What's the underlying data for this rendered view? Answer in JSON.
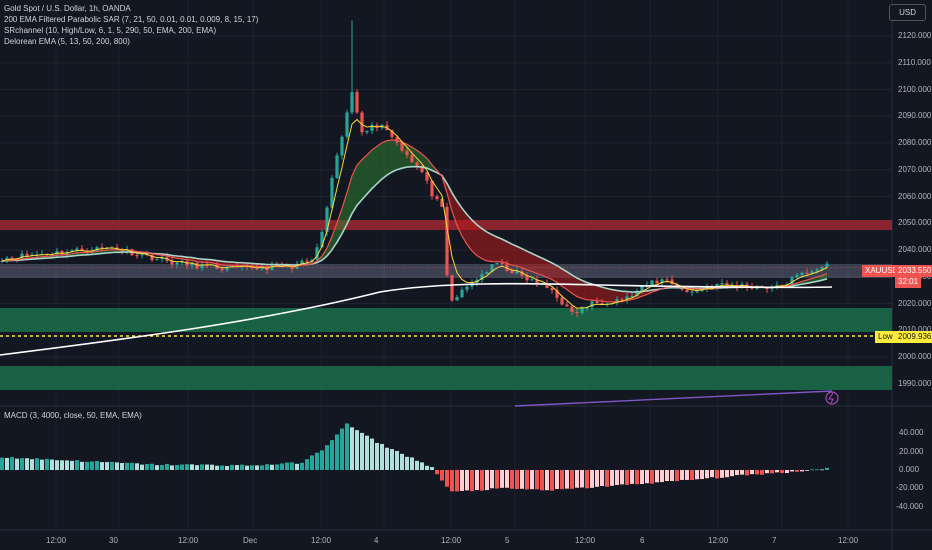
{
  "header": {
    "symbol_line": "Gold Spot / U.S. Dollar, 1h, OANDA",
    "indicators": [
      "200 EMA Filtered Parabolic SAR (7, 21, 50, 0.01, 0.01, 0.009, 8, 15, 17)",
      "SRchannel (10, High/Low, 6, 1, 5, 290, 50, EMA, 200, EMA)",
      "Delorean EMA (5, 13, 50, 200, 800)"
    ],
    "currency_button": "USD"
  },
  "price_axis": {
    "labels": [
      "2120.000",
      "2110.000",
      "2100.000",
      "2090.000",
      "2080.000",
      "2070.000",
      "2060.000",
      "2050.000",
      "2040.000",
      "2030.000",
      "2020.000",
      "2010.000",
      "2000.000",
      "1990.000"
    ]
  },
  "price_tags": {
    "symbol": "XAUUSD",
    "last_price": "2033.550",
    "countdown": "32:01",
    "low_label": "Low",
    "low_value": "2009.936"
  },
  "macd": {
    "legend": "MACD (3, 4000, close, 50, EMA, EMA)",
    "axis_labels": [
      "40.000",
      "20.000",
      "0.000",
      "-20.000",
      "-40.000"
    ]
  },
  "time_axis": {
    "labels": [
      "12:00",
      "30",
      "12:00",
      "Dec",
      "12:00",
      "4",
      "12:00",
      "5",
      "12:00",
      "6",
      "12:00",
      "7",
      "12:00"
    ]
  },
  "colors": {
    "background": "#131722",
    "up": "#26a69a",
    "down": "#ef5350",
    "resistance_zone": "#b22833",
    "support_zone": "#1b6e4a",
    "low_line": "#ffeb3b"
  }
}
